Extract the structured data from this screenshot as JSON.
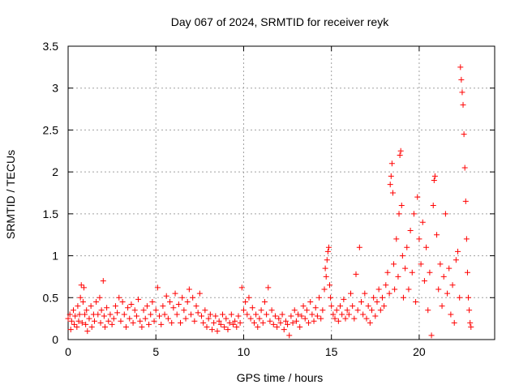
{
  "chart_data": {
    "type": "scatter",
    "title": "Day 067 of 2024, SRMTID for receiver reyk",
    "xlabel": "GPS time / hours",
    "ylabel": "SRMTID / TECUs",
    "xlim": [
      0,
      24.3
    ],
    "ylim": [
      0,
      3.5
    ],
    "xticks": [
      0,
      5,
      10,
      15,
      20
    ],
    "xtick_labels": [
      "0",
      "5",
      "10",
      "15",
      "20"
    ],
    "yticks": [
      0,
      0.5,
      1,
      1.5,
      2,
      2.5,
      3,
      3.5
    ],
    "ytick_labels": [
      "0",
      "0.5",
      "1",
      "1.5",
      "2",
      "2.5",
      "3",
      "3.5"
    ],
    "grid": true,
    "marker": "plus",
    "series": [
      {
        "name": "SRMTID",
        "color": "#ff0000",
        "points": [
          [
            0.0,
            0.25
          ],
          [
            0.1,
            0.3
          ],
          [
            0.15,
            0.12
          ],
          [
            0.2,
            0.22
          ],
          [
            0.3,
            0.35
          ],
          [
            0.35,
            0.18
          ],
          [
            0.4,
            0.28
          ],
          [
            0.5,
            0.15
          ],
          [
            0.55,
            0.4
          ],
          [
            0.6,
            0.22
          ],
          [
            0.65,
            0.3
          ],
          [
            0.7,
            0.5
          ],
          [
            0.75,
            0.65
          ],
          [
            0.8,
            0.2
          ],
          [
            0.85,
            0.45
          ],
          [
            0.9,
            0.62
          ],
          [
            0.95,
            0.3
          ],
          [
            1.0,
            0.18
          ],
          [
            1.05,
            0.35
          ],
          [
            1.1,
            0.1
          ],
          [
            1.2,
            0.25
          ],
          [
            1.3,
            0.4
          ],
          [
            1.35,
            0.15
          ],
          [
            1.45,
            0.3
          ],
          [
            1.5,
            0.22
          ],
          [
            1.6,
            0.45
          ],
          [
            1.7,
            0.3
          ],
          [
            1.8,
            0.5
          ],
          [
            1.85,
            0.2
          ],
          [
            1.9,
            0.35
          ],
          [
            2.0,
            0.7
          ],
          [
            2.05,
            0.28
          ],
          [
            2.1,
            0.15
          ],
          [
            2.2,
            0.38
          ],
          [
            2.3,
            0.22
          ],
          [
            2.4,
            0.3
          ],
          [
            2.5,
            0.18
          ],
          [
            2.6,
            0.25
          ],
          [
            2.7,
            0.4
          ],
          [
            2.8,
            0.32
          ],
          [
            2.9,
            0.5
          ],
          [
            3.0,
            0.22
          ],
          [
            3.1,
            0.45
          ],
          [
            3.2,
            0.3
          ],
          [
            3.3,
            0.15
          ],
          [
            3.4,
            0.38
          ],
          [
            3.5,
            0.25
          ],
          [
            3.6,
            0.42
          ],
          [
            3.7,
            0.2
          ],
          [
            3.8,
            0.35
          ],
          [
            3.9,
            0.28
          ],
          [
            4.0,
            0.48
          ],
          [
            4.1,
            0.22
          ],
          [
            4.2,
            0.15
          ],
          [
            4.3,
            0.35
          ],
          [
            4.4,
            0.25
          ],
          [
            4.5,
            0.4
          ],
          [
            4.6,
            0.18
          ],
          [
            4.7,
            0.3
          ],
          [
            4.8,
            0.45
          ],
          [
            4.9,
            0.22
          ],
          [
            5.0,
            0.35
          ],
          [
            5.1,
            0.62
          ],
          [
            5.2,
            0.28
          ],
          [
            5.3,
            0.18
          ],
          [
            5.4,
            0.4
          ],
          [
            5.5,
            0.3
          ],
          [
            5.6,
            0.52
          ],
          [
            5.7,
            0.25
          ],
          [
            5.8,
            0.45
          ],
          [
            5.9,
            0.2
          ],
          [
            6.0,
            0.38
          ],
          [
            6.1,
            0.55
          ],
          [
            6.2,
            0.3
          ],
          [
            6.3,
            0.42
          ],
          [
            6.4,
            0.2
          ],
          [
            6.5,
            0.5
          ],
          [
            6.6,
            0.35
          ],
          [
            6.7,
            0.25
          ],
          [
            6.8,
            0.45
          ],
          [
            6.9,
            0.6
          ],
          [
            7.0,
            0.3
          ],
          [
            7.1,
            0.5
          ],
          [
            7.2,
            0.22
          ],
          [
            7.3,
            0.4
          ],
          [
            7.4,
            0.32
          ],
          [
            7.5,
            0.55
          ],
          [
            7.6,
            0.28
          ],
          [
            7.7,
            0.2
          ],
          [
            7.8,
            0.35
          ],
          [
            7.9,
            0.15
          ],
          [
            8.0,
            0.25
          ],
          [
            8.1,
            0.3
          ],
          [
            8.2,
            0.12
          ],
          [
            8.3,
            0.2
          ],
          [
            8.4,
            0.28
          ],
          [
            8.5,
            0.1
          ],
          [
            8.6,
            0.22
          ],
          [
            8.7,
            0.18
          ],
          [
            8.8,
            0.3
          ],
          [
            8.9,
            0.15
          ],
          [
            9.0,
            0.25
          ],
          [
            9.1,
            0.12
          ],
          [
            9.2,
            0.2
          ],
          [
            9.3,
            0.3
          ],
          [
            9.4,
            0.18
          ],
          [
            9.5,
            0.22
          ],
          [
            9.6,
            0.15
          ],
          [
            9.7,
            0.28
          ],
          [
            9.8,
            0.2
          ],
          [
            9.9,
            0.62
          ],
          [
            10.0,
            0.35
          ],
          [
            10.1,
            0.45
          ],
          [
            10.2,
            0.3
          ],
          [
            10.3,
            0.5
          ],
          [
            10.4,
            0.25
          ],
          [
            10.5,
            0.38
          ],
          [
            10.6,
            0.2
          ],
          [
            10.7,
            0.3
          ],
          [
            10.8,
            0.15
          ],
          [
            10.9,
            0.25
          ],
          [
            11.0,
            0.35
          ],
          [
            11.1,
            0.2
          ],
          [
            11.2,
            0.45
          ],
          [
            11.3,
            0.3
          ],
          [
            11.4,
            0.62
          ],
          [
            11.5,
            0.22
          ],
          [
            11.6,
            0.35
          ],
          [
            11.7,
            0.18
          ],
          [
            11.8,
            0.28
          ],
          [
            11.9,
            0.15
          ],
          [
            12.0,
            0.25
          ],
          [
            12.1,
            0.2
          ],
          [
            12.2,
            0.3
          ],
          [
            12.3,
            0.12
          ],
          [
            12.4,
            0.22
          ],
          [
            12.5,
            0.18
          ],
          [
            12.6,
            0.05
          ],
          [
            12.7,
            0.28
          ],
          [
            12.8,
            0.2
          ],
          [
            12.9,
            0.35
          ],
          [
            13.0,
            0.22
          ],
          [
            13.1,
            0.3
          ],
          [
            13.2,
            0.15
          ],
          [
            13.3,
            0.28
          ],
          [
            13.4,
            0.4
          ],
          [
            13.5,
            0.25
          ],
          [
            13.6,
            0.35
          ],
          [
            13.7,
            0.2
          ],
          [
            13.8,
            0.45
          ],
          [
            13.9,
            0.3
          ],
          [
            14.0,
            0.22
          ],
          [
            14.1,
            0.38
          ],
          [
            14.2,
            0.28
          ],
          [
            14.3,
            0.5
          ],
          [
            14.4,
            0.25
          ],
          [
            14.5,
            0.35
          ],
          [
            14.6,
            0.6
          ],
          [
            14.65,
            0.85
          ],
          [
            14.7,
            0.75
          ],
          [
            14.75,
            0.95
          ],
          [
            14.8,
            1.05
          ],
          [
            14.85,
            1.1
          ],
          [
            14.9,
            0.65
          ],
          [
            14.95,
            0.5
          ],
          [
            15.0,
            0.4
          ],
          [
            15.1,
            0.3
          ],
          [
            15.2,
            0.25
          ],
          [
            15.3,
            0.35
          ],
          [
            15.4,
            0.22
          ],
          [
            15.5,
            0.4
          ],
          [
            15.6,
            0.3
          ],
          [
            15.7,
            0.48
          ],
          [
            15.8,
            0.25
          ],
          [
            15.9,
            0.35
          ],
          [
            16.0,
            0.3
          ],
          [
            16.1,
            0.55
          ],
          [
            16.2,
            0.4
          ],
          [
            16.3,
            0.25
          ],
          [
            16.4,
            0.78
          ],
          [
            16.5,
            0.35
          ],
          [
            16.6,
            1.1
          ],
          [
            16.7,
            0.45
          ],
          [
            16.8,
            0.3
          ],
          [
            16.9,
            0.55
          ],
          [
            17.0,
            0.25
          ],
          [
            17.1,
            0.4
          ],
          [
            17.2,
            0.2
          ],
          [
            17.3,
            0.35
          ],
          [
            17.4,
            0.5
          ],
          [
            17.5,
            0.28
          ],
          [
            17.6,
            0.45
          ],
          [
            17.7,
            0.6
          ],
          [
            17.8,
            0.35
          ],
          [
            17.9,
            0.5
          ],
          [
            18.0,
            0.4
          ],
          [
            18.1,
            0.65
          ],
          [
            18.2,
            0.8
          ],
          [
            18.3,
            0.55
          ],
          [
            18.35,
            1.85
          ],
          [
            18.4,
            1.95
          ],
          [
            18.45,
            2.1
          ],
          [
            18.5,
            1.75
          ],
          [
            18.55,
            0.9
          ],
          [
            18.6,
            0.6
          ],
          [
            18.7,
            1.2
          ],
          [
            18.8,
            0.75
          ],
          [
            18.85,
            1.5
          ],
          [
            18.9,
            2.2
          ],
          [
            18.95,
            2.25
          ],
          [
            19.0,
            1.6
          ],
          [
            19.05,
            1.0
          ],
          [
            19.1,
            0.5
          ],
          [
            19.2,
            0.85
          ],
          [
            19.3,
            1.1
          ],
          [
            19.4,
            0.6
          ],
          [
            19.5,
            1.3
          ],
          [
            19.6,
            0.8
          ],
          [
            19.7,
            1.5
          ],
          [
            19.8,
            0.45
          ],
          [
            19.9,
            1.7
          ],
          [
            20.0,
            1.2
          ],
          [
            20.1,
            0.9
          ],
          [
            20.2,
            1.4
          ],
          [
            20.3,
            0.7
          ],
          [
            20.4,
            1.1
          ],
          [
            20.5,
            0.35
          ],
          [
            20.6,
            0.8
          ],
          [
            20.7,
            0.05
          ],
          [
            20.8,
            1.6
          ],
          [
            20.85,
            1.9
          ],
          [
            20.9,
            1.95
          ],
          [
            21.0,
            1.25
          ],
          [
            21.1,
            0.6
          ],
          [
            21.2,
            0.9
          ],
          [
            21.3,
            0.4
          ],
          [
            21.4,
            0.75
          ],
          [
            21.5,
            1.5
          ],
          [
            21.6,
            0.55
          ],
          [
            21.7,
            0.85
          ],
          [
            21.8,
            0.3
          ],
          [
            21.9,
            0.65
          ],
          [
            22.0,
            0.2
          ],
          [
            22.1,
            0.95
          ],
          [
            22.2,
            1.05
          ],
          [
            22.3,
            0.5
          ],
          [
            22.35,
            3.25
          ],
          [
            22.4,
            3.1
          ],
          [
            22.45,
            2.95
          ],
          [
            22.5,
            2.8
          ],
          [
            22.55,
            2.45
          ],
          [
            22.6,
            2.05
          ],
          [
            22.65,
            1.65
          ],
          [
            22.7,
            1.2
          ],
          [
            22.75,
            0.8
          ],
          [
            22.8,
            0.5
          ],
          [
            22.85,
            0.35
          ],
          [
            22.9,
            0.2
          ],
          [
            22.95,
            0.15
          ]
        ]
      }
    ]
  }
}
